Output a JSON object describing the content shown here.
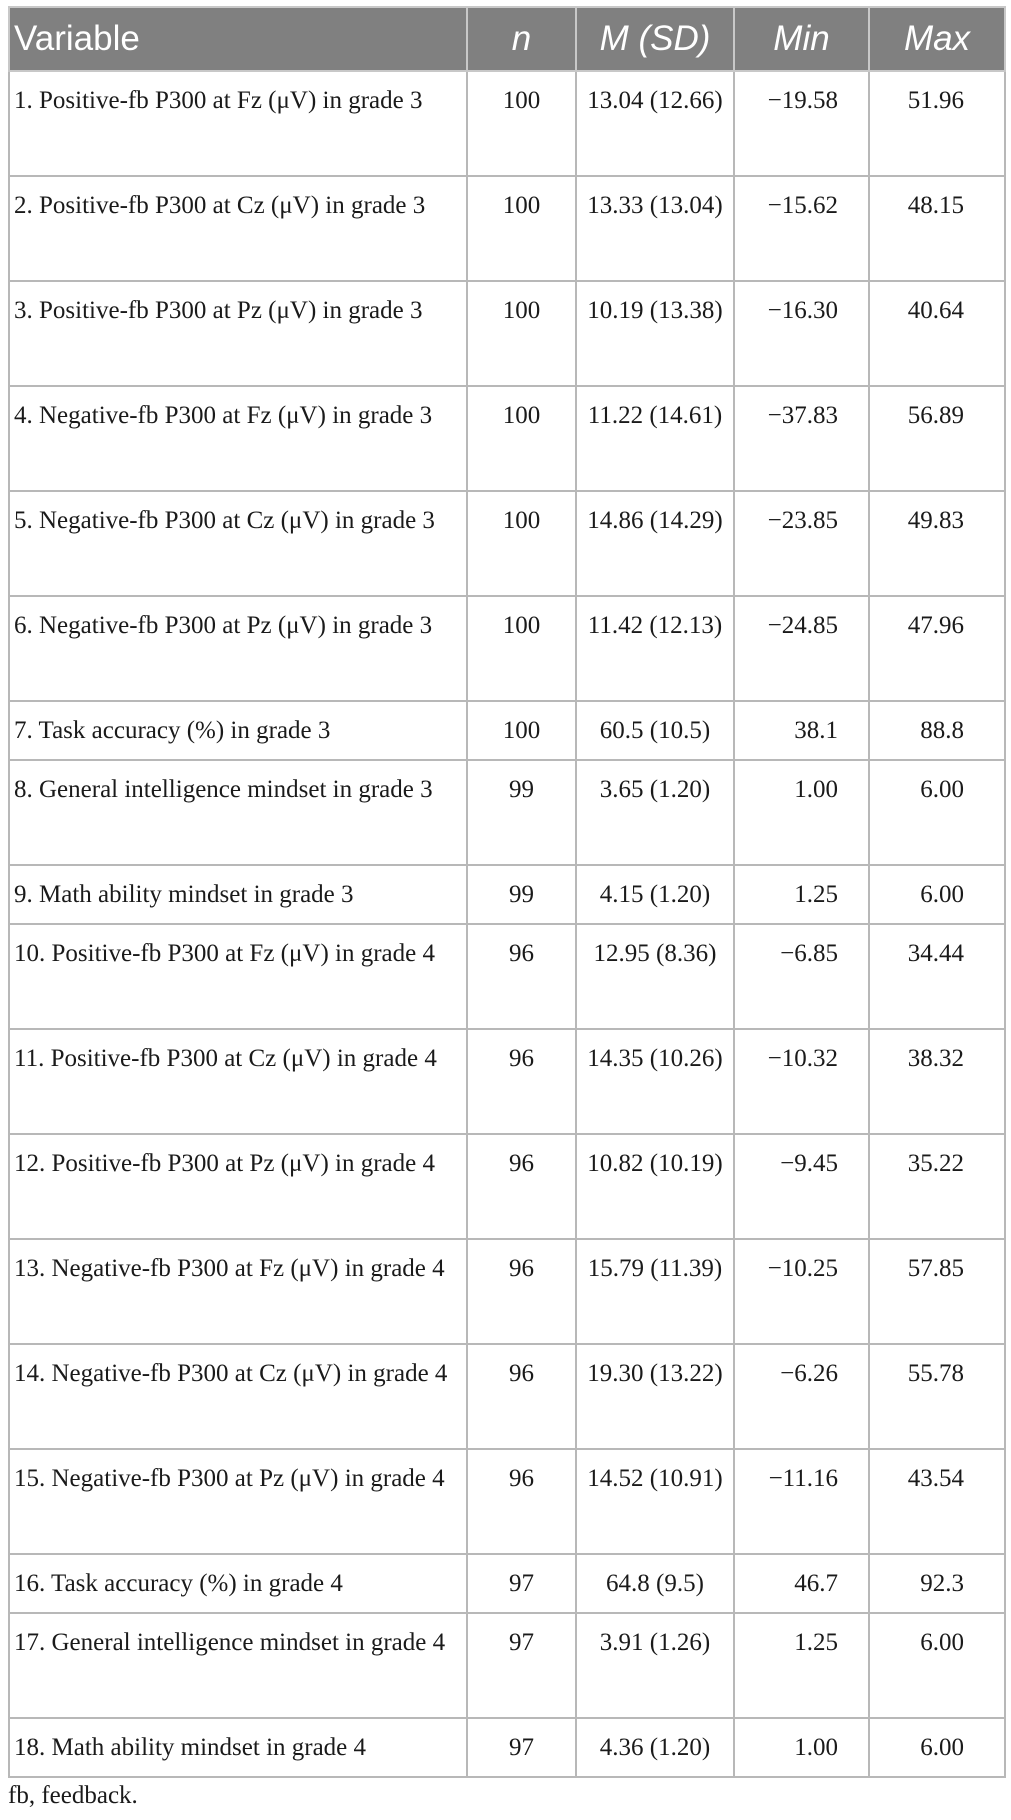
{
  "table": {
    "headers": {
      "variable": "Variable",
      "n": "n",
      "msd": "M (SD)",
      "min": "Min",
      "max": "Max"
    },
    "rows": [
      {
        "variable": "1. Positive-fb P300 at Fz (μV) in grade 3",
        "n": "100",
        "msd": "13.04 (12.66)",
        "min": "−19.58",
        "max": "51.96"
      },
      {
        "variable": "2. Positive-fb P300 at Cz (μV) in grade 3",
        "n": "100",
        "msd": "13.33 (13.04)",
        "min": "−15.62",
        "max": "48.15"
      },
      {
        "variable": "3. Positive-fb P300 at Pz (μV) in grade 3",
        "n": "100",
        "msd": "10.19 (13.38)",
        "min": "−16.30",
        "max": "40.64"
      },
      {
        "variable": "4. Negative-fb P300 at Fz (μV) in grade 3",
        "n": "100",
        "msd": "11.22 (14.61)",
        "min": "−37.83",
        "max": "56.89"
      },
      {
        "variable": "5. Negative-fb P300 at Cz (μV) in grade 3",
        "n": "100",
        "msd": "14.86 (14.29)",
        "min": "−23.85",
        "max": "49.83"
      },
      {
        "variable": "6. Negative-fb P300 at Pz (μV) in grade 3",
        "n": "100",
        "msd": "11.42 (12.13)",
        "min": "−24.85",
        "max": "47.96"
      },
      {
        "variable": "7. Task accuracy (%) in grade 3",
        "n": "100",
        "msd": "60.5 (10.5)",
        "min": "38.1",
        "max": "88.8"
      },
      {
        "variable": "8. General intelligence mindset in grade 3",
        "n": "99",
        "msd": "3.65 (1.20)",
        "min": "1.00",
        "max": "6.00"
      },
      {
        "variable": "9. Math ability mindset in grade 3",
        "n": "99",
        "msd": "4.15 (1.20)",
        "min": "1.25",
        "max": "6.00"
      },
      {
        "variable": "10. Positive-fb P300 at Fz (μV) in grade 4",
        "n": "96",
        "msd": "12.95 (8.36)",
        "min": "−6.85",
        "max": "34.44"
      },
      {
        "variable": "11. Positive-fb P300 at Cz (μV) in grade 4",
        "n": "96",
        "msd": "14.35 (10.26)",
        "min": "−10.32",
        "max": "38.32"
      },
      {
        "variable": "12. Positive-fb P300 at Pz (μV) in grade 4",
        "n": "96",
        "msd": "10.82 (10.19)",
        "min": "−9.45",
        "max": "35.22"
      },
      {
        "variable": "13. Negative-fb P300 at Fz (μV) in grade 4",
        "n": "96",
        "msd": "15.79 (11.39)",
        "min": "−10.25",
        "max": "57.85"
      },
      {
        "variable": "14. Negative-fb P300 at Cz (μV) in grade 4",
        "n": "96",
        "msd": "19.30 (13.22)",
        "min": "−6.26",
        "max": "55.78"
      },
      {
        "variable": "15. Negative-fb P300 at Pz (μV) in grade 4",
        "n": "96",
        "msd": "14.52 (10.91)",
        "min": "−11.16",
        "max": "43.54"
      },
      {
        "variable": "16. Task accuracy (%) in grade 4",
        "n": "97",
        "msd": "64.8 (9.5)",
        "min": "46.7",
        "max": "92.3"
      },
      {
        "variable": "17. General intelligence mindset in grade 4",
        "n": "97",
        "msd": "3.91 (1.26)",
        "min": "1.25",
        "max": "6.00"
      },
      {
        "variable": "18. Math ability mindset in grade 4",
        "n": "97",
        "msd": "4.36 (1.20)",
        "min": "1.00",
        "max": "6.00"
      }
    ]
  },
  "footnote": "fb, feedback.",
  "colors": {
    "header_bg": "#808080",
    "header_text": "#ffffff",
    "grid": "#b8b8b8"
  }
}
